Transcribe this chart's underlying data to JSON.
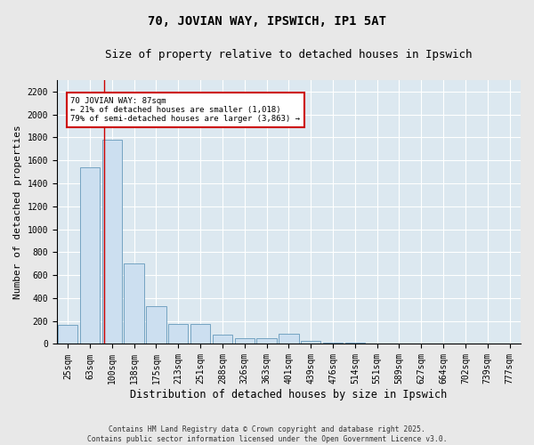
{
  "title_line1": "70, JOVIAN WAY, IPSWICH, IP1 5AT",
  "title_line2": "Size of property relative to detached houses in Ipswich",
  "xlabel": "Distribution of detached houses by size in Ipswich",
  "ylabel": "Number of detached properties",
  "bar_color": "#ccdff0",
  "bar_edge_color": "#6699bb",
  "background_color": "#dce8f0",
  "grid_color": "#ffffff",
  "categories": [
    "25sqm",
    "63sqm",
    "100sqm",
    "138sqm",
    "175sqm",
    "213sqm",
    "251sqm",
    "288sqm",
    "326sqm",
    "363sqm",
    "401sqm",
    "439sqm",
    "476sqm",
    "514sqm",
    "551sqm",
    "589sqm",
    "627sqm",
    "664sqm",
    "702sqm",
    "739sqm",
    "777sqm"
  ],
  "values": [
    170,
    1540,
    1780,
    700,
    330,
    175,
    175,
    85,
    50,
    50,
    90,
    30,
    15,
    10,
    5,
    2,
    1,
    1,
    0,
    0,
    0
  ],
  "ylim": [
    0,
    2300
  ],
  "yticks": [
    0,
    200,
    400,
    600,
    800,
    1000,
    1200,
    1400,
    1600,
    1800,
    2000,
    2200
  ],
  "red_line_x": 1.65,
  "annotation_text": "70 JOVIAN WAY: 87sqm\n← 21% of detached houses are smaller (1,018)\n79% of semi-detached houses are larger (3,863) →",
  "annotation_box_color": "#ffffff",
  "annotation_border_color": "#cc0000",
  "footnote_line1": "Contains HM Land Registry data © Crown copyright and database right 2025.",
  "footnote_line2": "Contains public sector information licensed under the Open Government Licence v3.0.",
  "title_fontsize": 10,
  "subtitle_fontsize": 9,
  "tick_fontsize": 7,
  "xlabel_fontsize": 8.5,
  "ylabel_fontsize": 8,
  "footnote_fontsize": 5.8,
  "fig_bg_color": "#e8e8e8"
}
